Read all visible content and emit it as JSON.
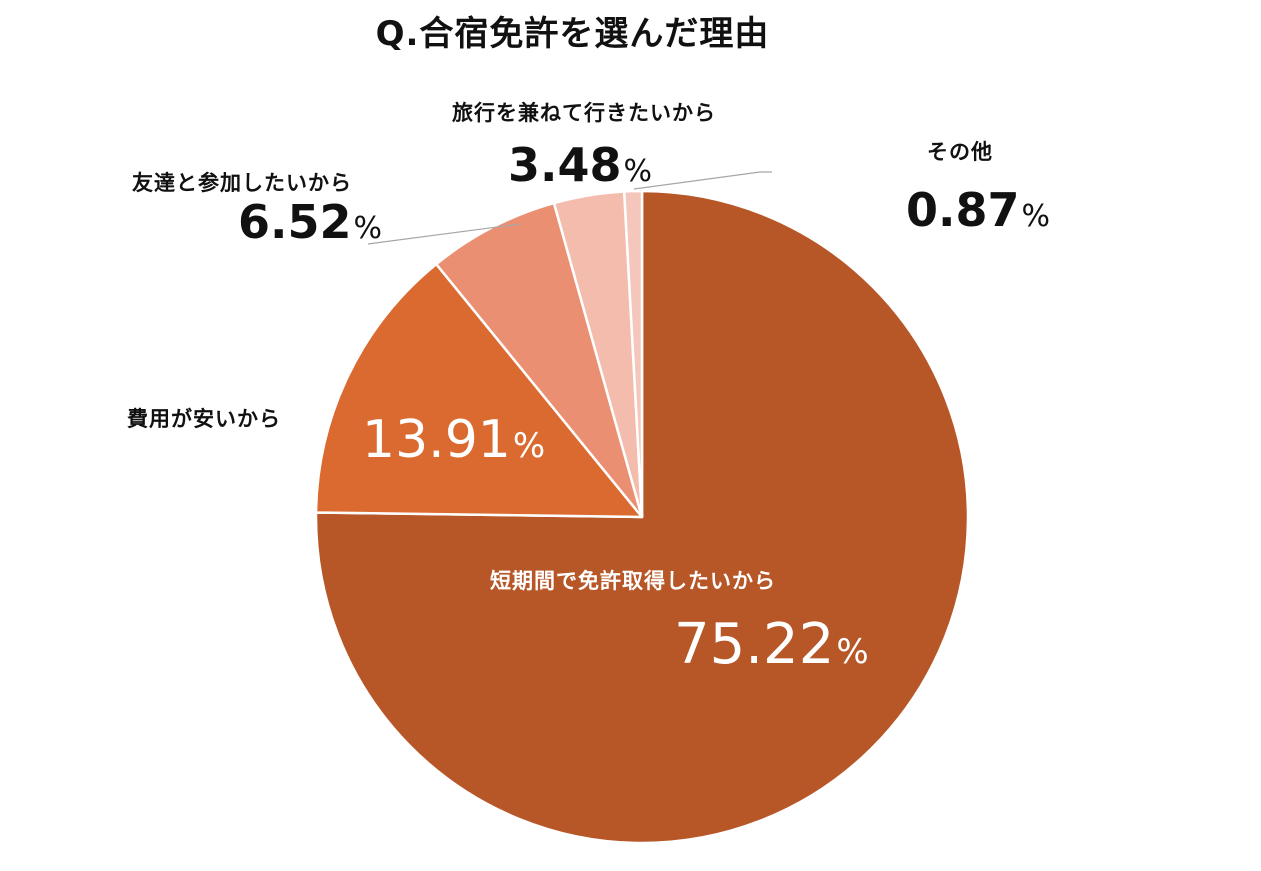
{
  "title": "Q.合宿免許を選んだ理由",
  "slices": [
    {
      "label": "短期間で免許取得したいから",
      "value": "75.22",
      "unit": "%",
      "color": "#b75627"
    },
    {
      "label": "費用が安いから",
      "value": "13.91",
      "unit": "%",
      "color": "#da6a2f"
    },
    {
      "label": "友達と参加したいから",
      "value": "6.52",
      "unit": "%",
      "color": "#ea8f72"
    },
    {
      "label": "旅行を兼ねて行きたいから",
      "value": "3.48",
      "unit": "%",
      "color": "#f3bcad"
    },
    {
      "label": "その他",
      "value": "0.87",
      "unit": "%",
      "color": "#f4c6bc"
    }
  ],
  "chart_data": {
    "type": "pie",
    "title": "Q.合宿免許を選んだ理由",
    "categories": [
      "短期間で免許取得したいから",
      "費用が安いから",
      "友達と参加したいから",
      "旅行を兼ねて行きたいから",
      "その他"
    ],
    "values": [
      75.22,
      13.91,
      6.52,
      3.48,
      0.87
    ],
    "unit": "%",
    "start_angle": "12 o'clock",
    "direction": "clockwise",
    "colors": [
      "#b75627",
      "#da6a2f",
      "#ea8f72",
      "#f3bcad",
      "#f4c6bc"
    ],
    "legend": "none (data labels with leader lines)"
  }
}
